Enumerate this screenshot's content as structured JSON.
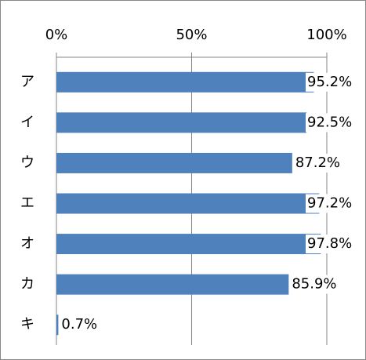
{
  "chart_data": {
    "type": "bar",
    "orientation": "horizontal",
    "categories": [
      "ア",
      "イ",
      "ウ",
      "エ",
      "オ",
      "カ",
      "キ"
    ],
    "values": [
      95.2,
      92.5,
      87.2,
      97.2,
      97.8,
      85.9,
      0.7
    ],
    "value_labels": [
      "95.2%",
      "92.5%",
      "87.2%",
      "97.2%",
      "97.8%",
      "85.9%",
      "0.7%"
    ],
    "color": "#4f81bd",
    "xlim": [
      0,
      100
    ],
    "xticks": [
      {
        "value": 0,
        "label": "0%"
      },
      {
        "value": 50,
        "label": "50%"
      },
      {
        "value": 100,
        "label": "100%"
      }
    ],
    "grid": true
  }
}
